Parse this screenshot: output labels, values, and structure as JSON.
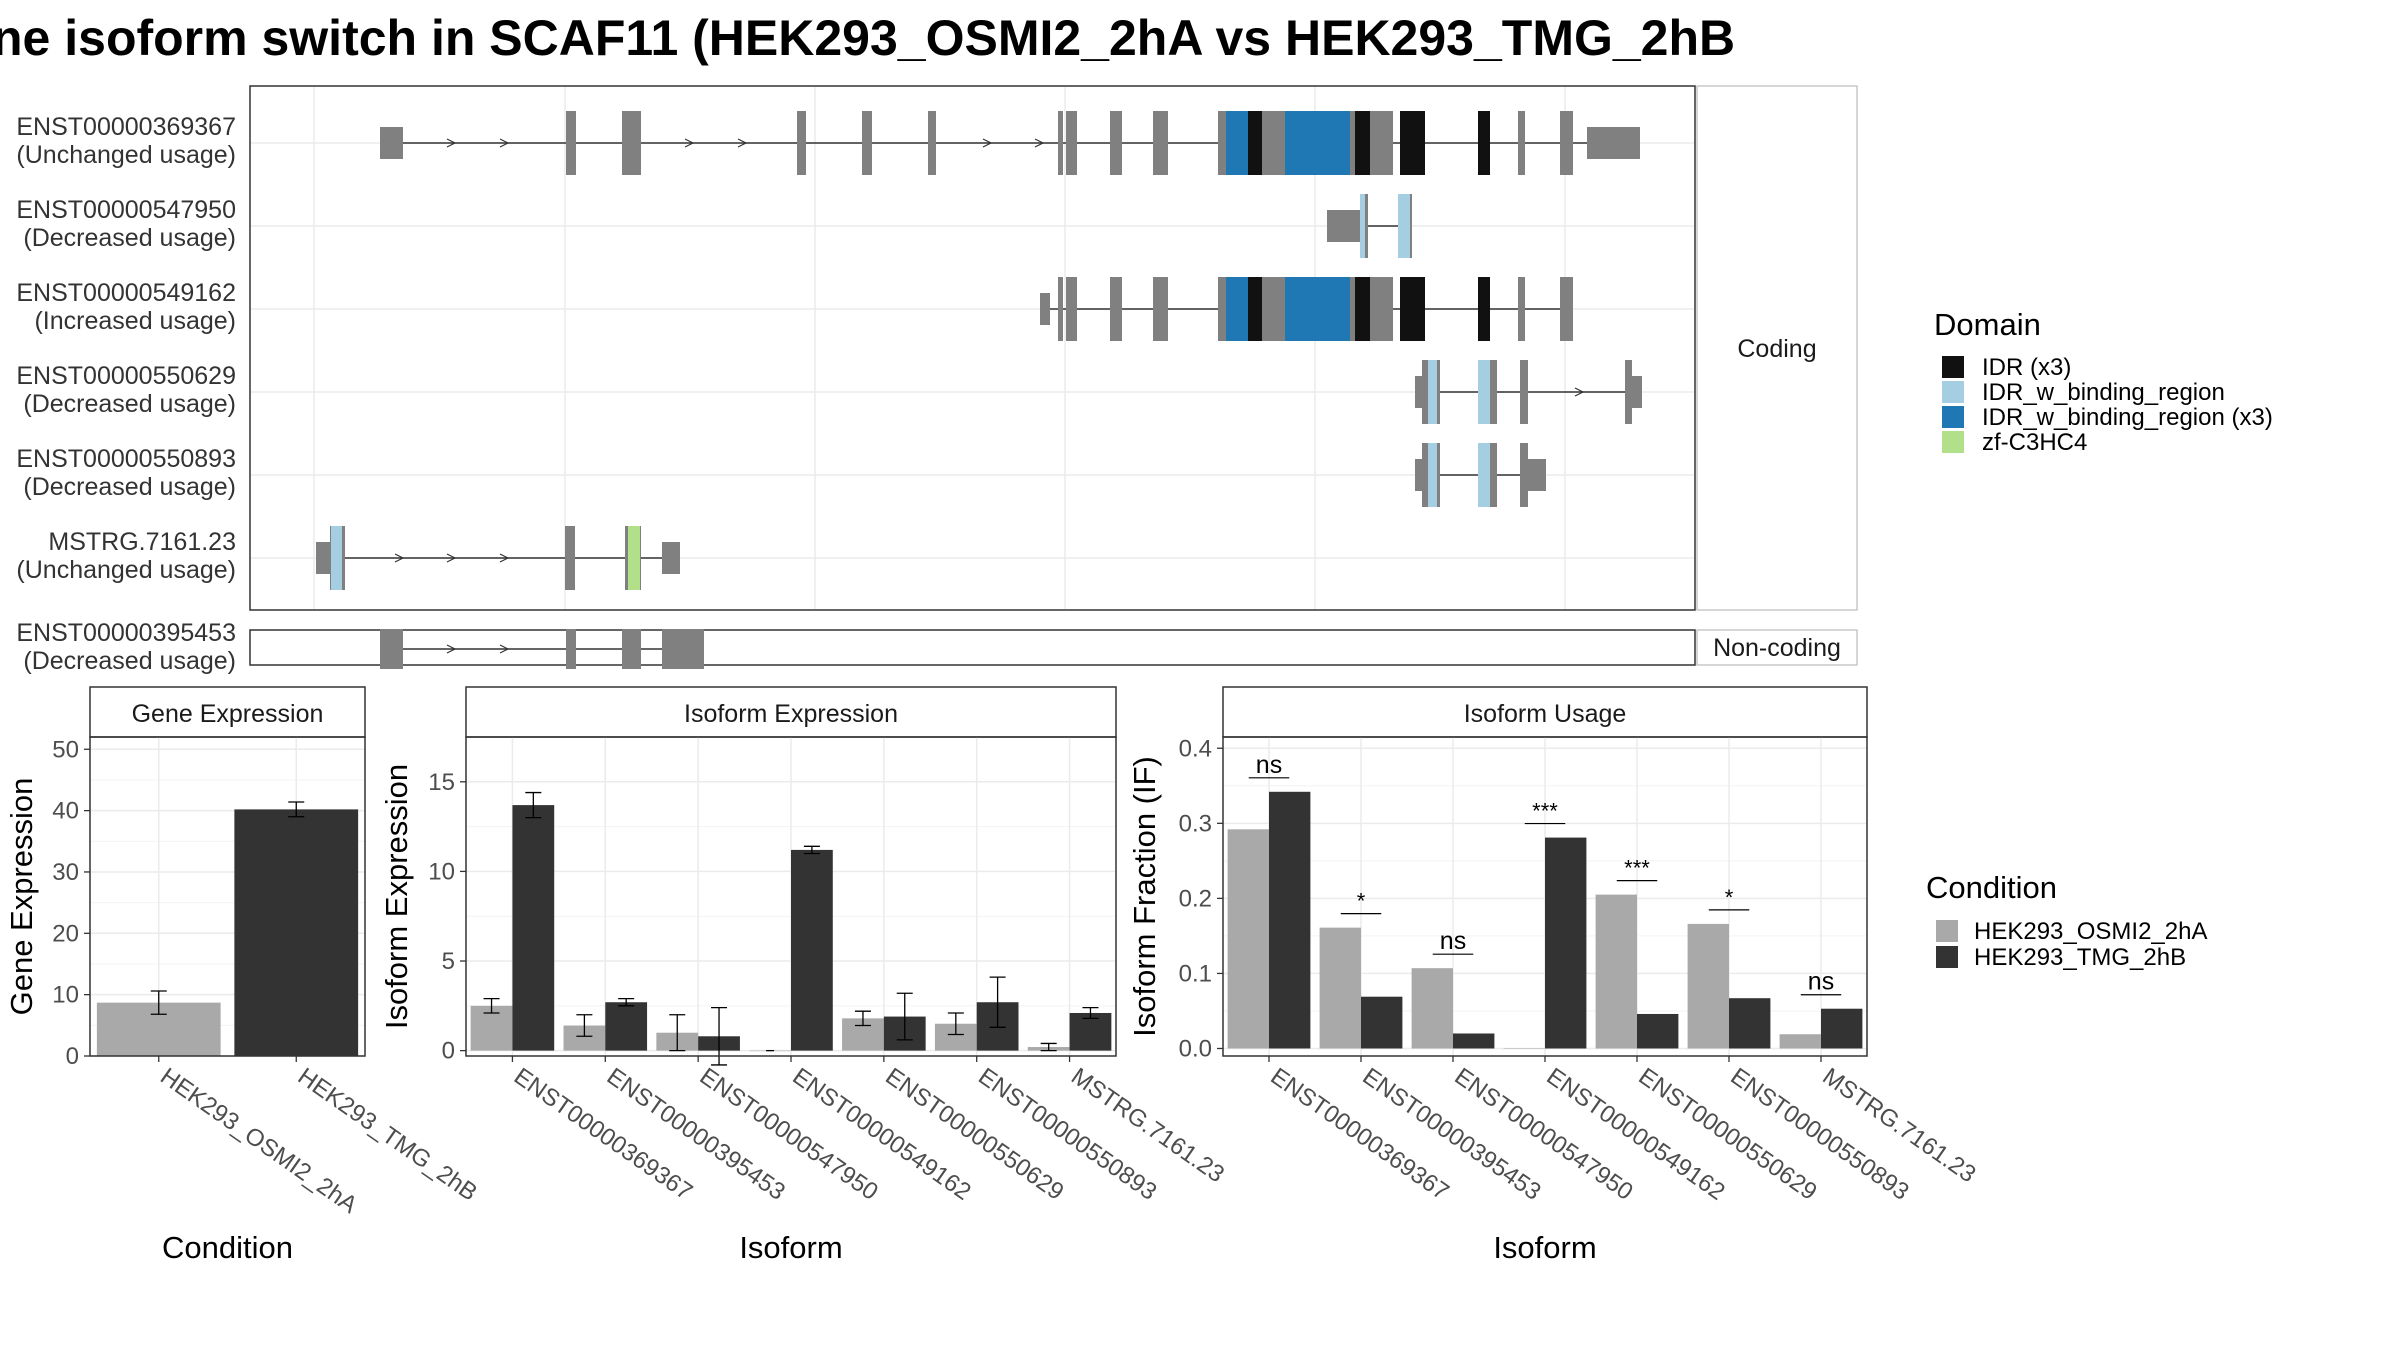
{
  "title": "ne isoform switch in SCAF11 (HEK293_OSMI2_2hA vs HEK293_TMG_2hB",
  "colors": {
    "exon": "#808080",
    "idr": "#111111",
    "idr_w_binding_region": "#a6cee3",
    "idr_w_binding_region_x3": "#1f78b4",
    "zf_c3hc4": "#b2df8a",
    "condition_a": "#a9a9a9",
    "condition_b": "#333333"
  },
  "structure": {
    "coding_strip": "Coding",
    "noncoding_strip": "Non-coding",
    "coding_transcripts": [
      {
        "id": "ENST00000369367",
        "usage": "(Unchanged usage)"
      },
      {
        "id": "ENST00000547950",
        "usage": "(Decreased usage)"
      },
      {
        "id": "ENST00000549162",
        "usage": "(Increased usage)"
      },
      {
        "id": "ENST00000550629",
        "usage": "(Decreased usage)"
      },
      {
        "id": "ENST00000550893",
        "usage": "(Decreased usage)"
      },
      {
        "id": "MSTRG.7161.23",
        "usage": "(Unchanged usage)"
      }
    ],
    "noncoding_transcripts": [
      {
        "id": "ENST00000395453",
        "usage": "(Decreased usage)"
      }
    ]
  },
  "legend_domain": {
    "title": "Domain",
    "items": [
      {
        "label": "IDR (x3)",
        "color": "#111111"
      },
      {
        "label": "IDR_w_binding_region",
        "color": "#a6cee3"
      },
      {
        "label": "IDR_w_binding_region (x3)",
        "color": "#1f78b4"
      },
      {
        "label": "zf-C3HC4",
        "color": "#b2df8a"
      }
    ]
  },
  "legend_condition": {
    "title": "Condition",
    "items": [
      {
        "label": "HEK293_OSMI2_2hA",
        "color": "#a9a9a9"
      },
      {
        "label": "HEK293_TMG_2hB",
        "color": "#333333"
      }
    ]
  },
  "chart_data": [
    {
      "type": "bar",
      "title": "Gene Expression",
      "xlabel": "Condition",
      "ylabel": "Gene Expression",
      "ylim": [
        0,
        52
      ],
      "yticks": [
        0,
        10,
        20,
        30,
        40,
        50
      ],
      "categories": [
        "HEK293_OSMI2_2hA",
        "HEK293_TMG_2hB"
      ],
      "values": [
        8.7,
        40.2
      ],
      "errors": [
        1.9,
        1.2
      ],
      "grid": true
    },
    {
      "type": "bar",
      "title": "Isoform Expression",
      "xlabel": "Isoform",
      "ylabel": "Isoform Expression",
      "ylim": [
        -0.3,
        17.5
      ],
      "yticks": [
        0,
        5,
        10,
        15
      ],
      "categories": [
        "ENST00000369367",
        "ENST00000395453",
        "ENST00000547950",
        "ENST00000549162",
        "ENST00000550629",
        "ENST00000550893",
        "MSTRG.7161.23"
      ],
      "series": [
        {
          "name": "HEK293_OSMI2_2hA",
          "values": [
            2.5,
            1.4,
            1.0,
            0.0,
            1.8,
            1.5,
            0.2
          ],
          "errors": [
            0.4,
            0.6,
            1.0,
            0.0,
            0.4,
            0.6,
            0.2
          ]
        },
        {
          "name": "HEK293_TMG_2hB",
          "values": [
            13.7,
            2.7,
            0.8,
            11.2,
            1.9,
            2.7,
            2.1
          ],
          "errors": [
            0.7,
            0.2,
            1.6,
            0.2,
            1.3,
            1.4,
            0.3
          ]
        }
      ],
      "grid": true
    },
    {
      "type": "bar",
      "title": "Isoform Usage",
      "xlabel": "Isoform",
      "ylabel": "Isoform Fraction (IF)",
      "ylim": [
        -0.01,
        0.415
      ],
      "yticks": [
        0.0,
        0.1,
        0.2,
        0.3,
        0.4
      ],
      "ytick_labels": [
        "0.0",
        "0.1",
        "0.2",
        "0.3",
        "0.4"
      ],
      "categories": [
        "ENST00000369367",
        "ENST00000395453",
        "ENST00000547950",
        "ENST00000549162",
        "ENST00000550629",
        "ENST00000550893",
        "MSTRG.7161.23"
      ],
      "series": [
        {
          "name": "HEK293_OSMI2_2hA",
          "values": [
            0.292,
            0.161,
            0.107,
            0.0,
            0.205,
            0.166,
            0.019
          ]
        },
        {
          "name": "HEK293_TMG_2hB",
          "values": [
            0.342,
            0.069,
            0.02,
            0.281,
            0.046,
            0.067,
            0.053
          ]
        }
      ],
      "significance": [
        "ns",
        "*",
        "ns",
        "***",
        "***",
        "*",
        "ns"
      ],
      "grid": true
    }
  ]
}
